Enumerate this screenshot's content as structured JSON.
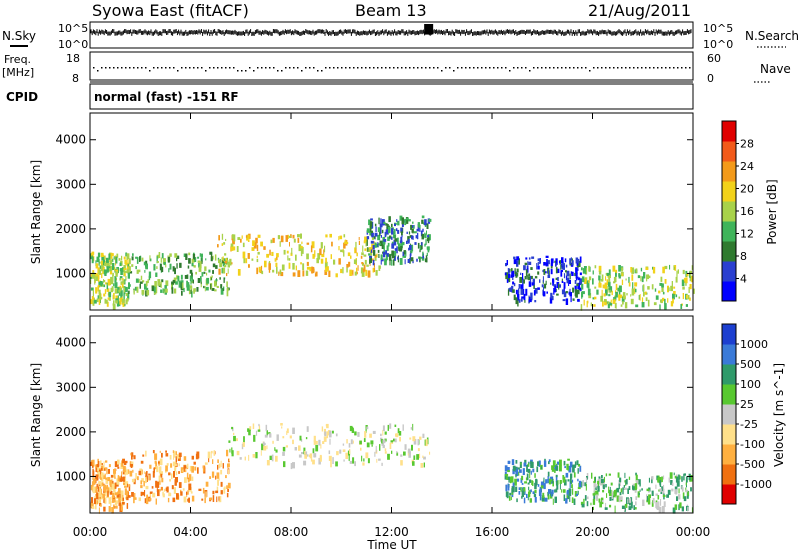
{
  "header": {
    "station": "Syowa East (fitACF)",
    "beam": "Beam 13",
    "date": "21/Aug/2011"
  },
  "status_panels": {
    "nsky_label": "N.Sky",
    "nsky_top": "10^5",
    "nsky_bottom": "10^0",
    "nsearch_label": "N.Search",
    "nsearch_top": "10^5",
    "nsearch_bottom": "10^0",
    "freq_label_1": "Freq.",
    "freq_label_2": "[MHz]",
    "freq_top": "18",
    "freq_bottom": "8",
    "nave_label": "Nave",
    "nave_top": "60",
    "nave_bottom": "0",
    "cpid_label": "CPID",
    "cpid_text": "normal (fast) -151 RF"
  },
  "colors": {
    "power_scale": [
      "#0000ff",
      "#2a3fd0",
      "#2f7a2f",
      "#3fb45a",
      "#a8d24a",
      "#f2d21a",
      "#f39a1a",
      "#f25a1a",
      "#e00000"
    ],
    "velocity_scale": [
      "#1c3fd0",
      "#3a7ad8",
      "#2f9a6a",
      "#58c830",
      "#c8c8c8",
      "#ffe08a",
      "#ffb040",
      "#f07010",
      "#e00000"
    ]
  },
  "chart_data": [
    {
      "type": "heatmap",
      "panel": "power",
      "xlabel": "",
      "ylabel": "Slant Range [km]",
      "x_ticks": [
        "00:00",
        "04:00",
        "08:00",
        "12:00",
        "16:00",
        "20:00",
        "00:00"
      ],
      "y_ticks": [
        "1000",
        "2000",
        "3000",
        "4000"
      ],
      "ylim": [
        180,
        4600
      ],
      "xlim_hours": [
        0,
        24
      ],
      "colorbar_label": "Power [dB]",
      "colorbar_ticks": [
        "4",
        "8",
        "12",
        "16",
        "20",
        "24",
        "28"
      ],
      "echo_regions": [
        {
          "t0": 0.0,
          "t1": 1.5,
          "r0": 300,
          "r1": 1500,
          "level": 4
        },
        {
          "t0": 1.5,
          "t1": 5.5,
          "r0": 600,
          "r1": 1500,
          "level": 3
        },
        {
          "t0": 5.0,
          "t1": 11.5,
          "r0": 1000,
          "r1": 1900,
          "level": 5
        },
        {
          "t0": 11.0,
          "t1": 13.5,
          "r0": 1300,
          "r1": 2300,
          "level": 2
        },
        {
          "t0": 16.5,
          "t1": 19.5,
          "r0": 400,
          "r1": 1400,
          "level": 1
        },
        {
          "t0": 19.5,
          "t1": 24.0,
          "r0": 300,
          "r1": 1200,
          "level": 4
        }
      ]
    },
    {
      "type": "heatmap",
      "panel": "velocity",
      "xlabel": "Time UT",
      "ylabel": "Slant Range [km]",
      "x_ticks": [
        "00:00",
        "04:00",
        "08:00",
        "12:00",
        "16:00",
        "20:00",
        "00:00"
      ],
      "y_ticks": [
        "1000",
        "2000",
        "3000",
        "4000"
      ],
      "ylim": [
        180,
        4600
      ],
      "xlim_hours": [
        0,
        24
      ],
      "colorbar_label": "Velocity [m s^-1]",
      "colorbar_ticks": [
        "1000",
        "500",
        "100",
        "25",
        "-25",
        "-100",
        "-500",
        "-1000"
      ],
      "echo_regions": [
        {
          "t0": 0.0,
          "t1": 1.5,
          "r0": 300,
          "r1": 1400,
          "level": 6
        },
        {
          "t0": 1.5,
          "t1": 5.5,
          "r0": 500,
          "r1": 1600,
          "level": 6
        },
        {
          "t0": 5.5,
          "t1": 13.5,
          "r0": 1300,
          "r1": 2200,
          "level": 4
        },
        {
          "t0": 16.5,
          "t1": 19.5,
          "r0": 500,
          "r1": 1400,
          "level": 2
        },
        {
          "t0": 19.5,
          "t1": 24.0,
          "r0": 300,
          "r1": 1100,
          "level": 3
        }
      ]
    }
  ]
}
